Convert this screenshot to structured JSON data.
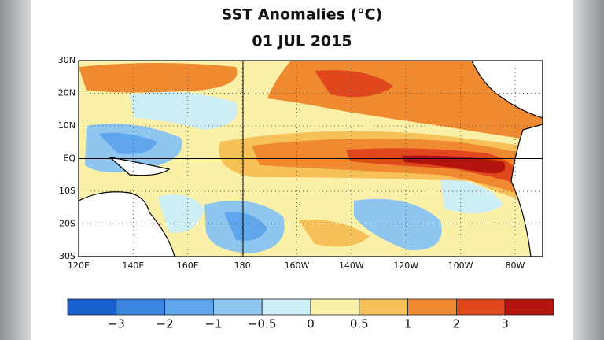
{
  "header": {
    "title": "SST Anomalies (°C)",
    "date": "01 JUL 2015"
  },
  "map": {
    "lat_labels": [
      "30N",
      "20N",
      "10N",
      "EQ",
      "10S",
      "20S",
      "30S"
    ],
    "lon_labels": [
      "120E",
      "140E",
      "160E",
      "180",
      "160W",
      "140W",
      "120W",
      "100W",
      "80W"
    ]
  },
  "colorbar": {
    "colors": [
      "#1a5fd0",
      "#3a86e0",
      "#5fa6ec",
      "#8ec6f0",
      "#cdeef5",
      "#fbf0a8",
      "#f7c15a",
      "#f08a30",
      "#e0471c",
      "#b5140e"
    ],
    "labels": [
      "−3",
      "−2",
      "−1",
      "−0.5",
      "0",
      "0.5",
      "1",
      "2",
      "3"
    ]
  }
}
